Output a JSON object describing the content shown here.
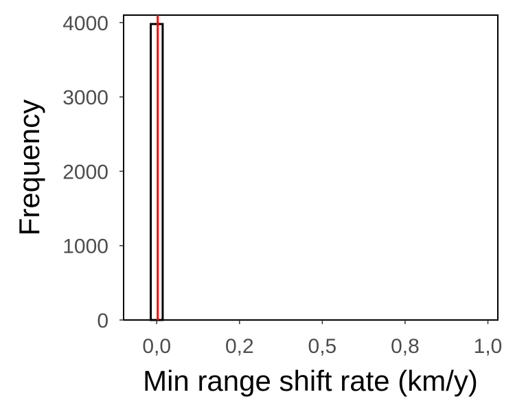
{
  "chart_data": {
    "type": "bar",
    "title": "",
    "xlabel": "Min range shift rate (km/y)",
    "ylabel": "Frequency",
    "x_ticks": [
      {
        "value": 0.0,
        "label": "0,0"
      },
      {
        "value": 0.25,
        "label": "0,2"
      },
      {
        "value": 0.5,
        "label": "0,5"
      },
      {
        "value": 0.75,
        "label": "0,8"
      },
      {
        "value": 1.0,
        "label": "1,0"
      }
    ],
    "y_ticks": [
      {
        "value": 0,
        "label": "0"
      },
      {
        "value": 1000,
        "label": "1000"
      },
      {
        "value": 2000,
        "label": "2000"
      },
      {
        "value": 3000,
        "label": "3000"
      },
      {
        "value": 4000,
        "label": "4000"
      }
    ],
    "xlim": [
      -0.1,
      1.03
    ],
    "ylim": [
      0,
      4100
    ],
    "bins": [
      {
        "x0": -0.018,
        "x1": 0.018,
        "count": 3980
      },
      {
        "x0": 0.018,
        "x1": 1.0,
        "count": 0
      }
    ],
    "reference_line": {
      "x": 0.003,
      "color": "#ff0000"
    },
    "grid": false,
    "colors": {
      "bar_outline": "#000000",
      "bar_fill": "#ffffff",
      "reference": "#ff0000",
      "axes": "#000000"
    }
  }
}
